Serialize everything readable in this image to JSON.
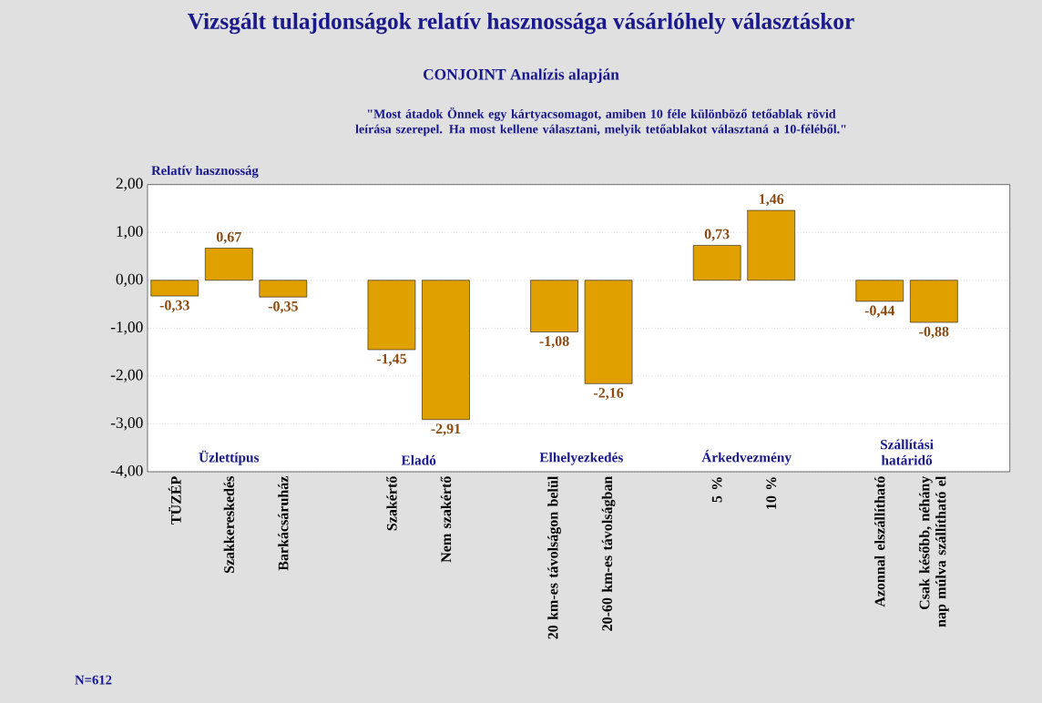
{
  "chart_data": {
    "type": "bar",
    "title": "Vizsgált tulajdonságok relatív hasznossága vásárlóhely választáskor",
    "subtitle": "CONJOINT Analízis alapján",
    "ylabel": "Relatív hasznosság",
    "annotations": [
      "\"Most átadok Önnek egy kártyacsomagot, amiben 10 féle különböző tetőablak rövid leírása szerepel. Ha most kellene választani, melyik tetőablakot választaná a 10-féléből.\"",
      "Üzlettípus",
      "Eladó",
      "Elhelyezkedés",
      "Árkedvezmény",
      "Szállítási határidő",
      "N=612"
    ],
    "categories": [
      "TÜZÉP",
      "Szakkereskedés",
      "Barkácsáruház",
      null,
      "Szakértő",
      "Nem szakértő",
      null,
      "20 km-es távolságon belül",
      "20-60 km-es távolságban",
      null,
      "5 %",
      "10 %",
      null,
      "Azonnal elszállítható",
      "Csak később, néhány nap múlva szállítható el"
    ],
    "values": [
      -0.33,
      0.67,
      -0.35,
      null,
      -1.45,
      -2.91,
      null,
      -1.08,
      -2.16,
      null,
      0.73,
      1.46,
      null,
      -0.44,
      -0.88
    ],
    "value_labels": [
      "-0,33",
      "0,67",
      "-0,35",
      null,
      "-1,45",
      "-2,91",
      null,
      "-1,08",
      "-2,16",
      null,
      "0,73",
      "1,46",
      null,
      "-0,44",
      "-0,88"
    ],
    "color": "#e0a000",
    "ylim": [
      -4,
      2
    ],
    "yticks": [
      {
        "value": -4,
        "label": "-4,00"
      },
      {
        "value": -3,
        "label": "-3,00"
      },
      {
        "value": -2,
        "label": "-2,00"
      },
      {
        "value": -1,
        "label": "-1,00"
      },
      {
        "value": 0,
        "label": "0,00"
      },
      {
        "value": 1,
        "label": "1,00"
      },
      {
        "value": 2,
        "label": "2,00"
      }
    ],
    "grid": "y"
  }
}
